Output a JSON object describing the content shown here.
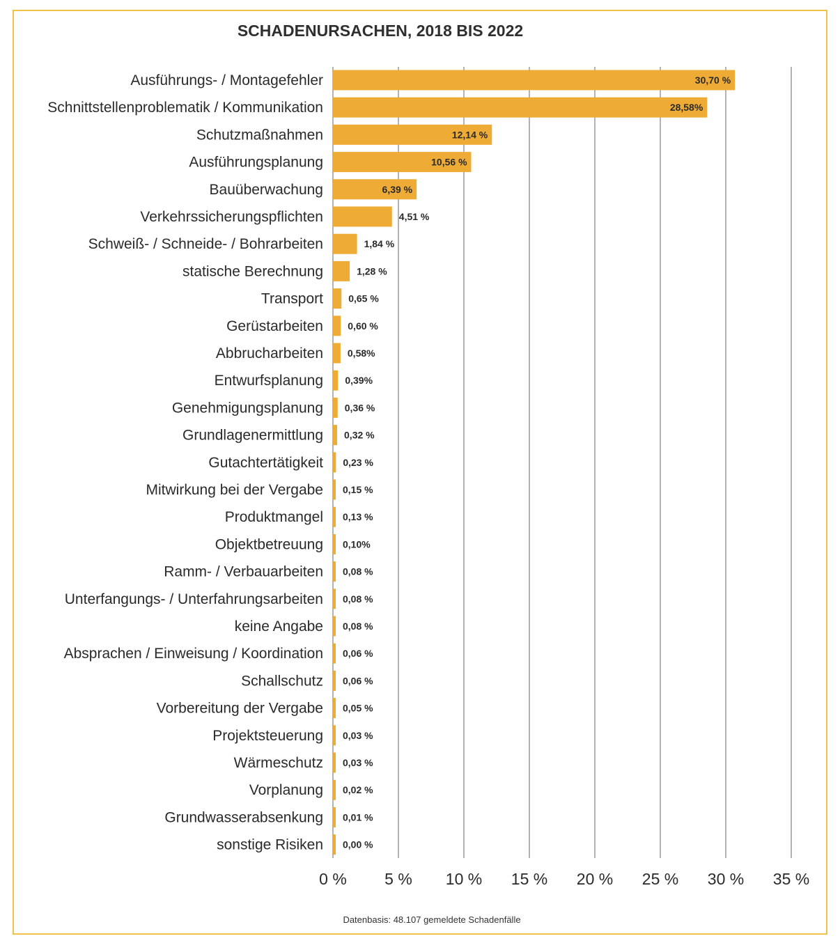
{
  "colors": {
    "bar": "#eeac37",
    "frame": "#f0c24a",
    "grid": "#9a9a9a",
    "text": "#2a2a2a"
  },
  "chart_data": {
    "type": "bar",
    "orientation": "horizontal",
    "title": "SCHADENURSACHEN, 2018 BIS 2022",
    "footnote": "Datenbasis: 48.107 gemeldete Schadenfälle",
    "xlim": [
      0,
      35
    ],
    "grid": true,
    "x_ticks": [
      0,
      5,
      10,
      15,
      20,
      25,
      30,
      35
    ],
    "x_tick_labels": [
      "0 %",
      "5 %",
      "10 %",
      "15 %",
      "20 %",
      "25 %",
      "30 %",
      "35 %"
    ],
    "categories": [
      "Ausführungs- / Montagefehler",
      "Schnittstellenproblematik / Kommunikation",
      "Schutzmaßnahmen",
      "Ausführungsplanung",
      "Bauüberwachung",
      "Verkehrssicherungspflichten",
      "Schweiß- / Schneide- / Bohrarbeiten",
      "statische Berechnung",
      "Transport",
      "Gerüstarbeiten",
      "Abbrucharbeiten",
      "Entwurfsplanung",
      "Genehmigungsplanung",
      "Grundlagenermittlung",
      "Gutachtertätigkeit",
      "Mitwirkung bei der Vergabe",
      "Produktmangel",
      "Objektbetreuung",
      "Ramm- / Verbauarbeiten",
      "Unterfangungs- / Unterfahrungsarbeiten",
      "keine Angabe",
      "Absprachen / Einweisung / Koordination",
      "Schallschutz",
      "Vorbereitung der Vergabe",
      "Projektsteuerung",
      "Wärmeschutz",
      "Vorplanung",
      "Grundwasserabsenkung",
      "sonstige Risiken"
    ],
    "values": [
      30.7,
      28.58,
      12.14,
      10.56,
      6.39,
      4.51,
      1.84,
      1.28,
      0.65,
      0.6,
      0.58,
      0.39,
      0.36,
      0.32,
      0.23,
      0.15,
      0.13,
      0.1,
      0.08,
      0.08,
      0.08,
      0.06,
      0.06,
      0.05,
      0.03,
      0.03,
      0.02,
      0.01,
      0.0
    ],
    "value_labels": [
      "30,70 %",
      "28,58%",
      "12,14 %",
      "10,56 %",
      "6,39 %",
      "4,51 %",
      "1,84 %",
      "1,28 %",
      "0,65 %",
      "0,60 %",
      "0,58%",
      "0,39%",
      "0,36 %",
      "0,32 %",
      "0,23 %",
      "0,15 %",
      "0,13 %",
      "0,10%",
      "0,08 %",
      "0,08 %",
      "0,08 %",
      "0,06 %",
      "0,06 %",
      "0,05 %",
      "0,03 %",
      "0,03 %",
      "0,02 %",
      "0,01 %",
      "0,00 %"
    ]
  }
}
